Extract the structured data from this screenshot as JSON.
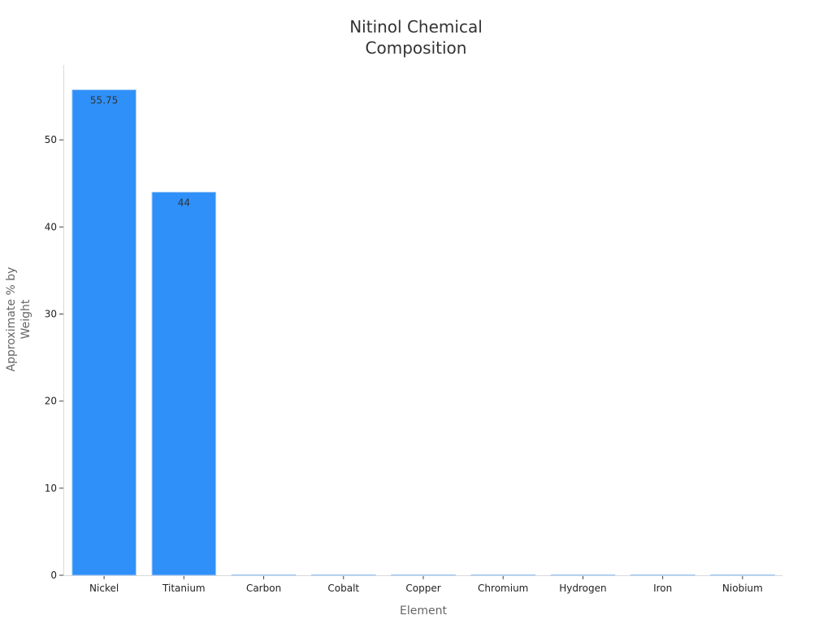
{
  "chart_data": {
    "type": "bar",
    "title": "Nitinol Chemical Composition",
    "title_lines": [
      "Nitinol Chemical",
      "Composition"
    ],
    "xlabel": "Element",
    "ylabel": "Approximate % by Weight",
    "ylabel_lines": [
      "Approximate % by",
      "Weight"
    ],
    "categories": [
      "Nickel",
      "Titanium",
      "Carbon",
      "Cobalt",
      "Copper",
      "Chromium",
      "Hydrogen",
      "Iron",
      "Niobium"
    ],
    "values": [
      55.75,
      44,
      0.05,
      0.05,
      0.01,
      0.01,
      0.005,
      0.05,
      0.025
    ],
    "data_labels": [
      "55.75",
      "44",
      "",
      "",
      "",
      "",
      "",
      "",
      ""
    ],
    "yticks": [
      0,
      10,
      20,
      30,
      40,
      50
    ],
    "ylim": [
      0,
      58.6
    ],
    "grid": false,
    "legend": "none",
    "bar_color": "#2e90f8",
    "bar_edge_color": "#a8cdf5"
  }
}
